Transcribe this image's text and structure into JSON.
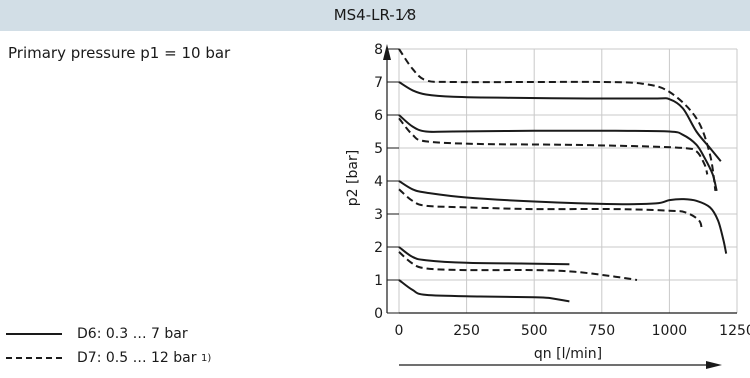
{
  "header": {
    "title": "MS4-LR-1⁄8"
  },
  "note": "Primary pressure p1 = 10 bar",
  "legend": [
    {
      "style": "solid",
      "label": "D6: 0.3 … 7 bar",
      "sup": ""
    },
    {
      "style": "dashed",
      "label": "D7: 0.5 … 12 bar",
      "sup": "1)"
    }
  ],
  "chart_data": {
    "type": "line",
    "title": "MS4-LR-1⁄8",
    "xlabel": "qn [l/min]",
    "ylabel": "p2 [bar]",
    "xlim": [
      0,
      1250
    ],
    "ylim": [
      0,
      8
    ],
    "x_ticks": [
      0,
      250,
      500,
      750,
      1000,
      1250
    ],
    "y_ticks": [
      0,
      1,
      2,
      3,
      4,
      5,
      6,
      7,
      8
    ],
    "grid": true,
    "series": [
      {
        "style": "solid",
        "points": [
          [
            0,
            7.0
          ],
          [
            50,
            6.75
          ],
          [
            100,
            6.62
          ],
          [
            200,
            6.55
          ],
          [
            400,
            6.52
          ],
          [
            700,
            6.5
          ],
          [
            950,
            6.5
          ],
          [
            1000,
            6.48
          ],
          [
            1050,
            6.2
          ],
          [
            1100,
            5.5
          ],
          [
            1150,
            5.0
          ],
          [
            1190,
            4.6
          ]
        ]
      },
      {
        "style": "solid",
        "points": [
          [
            0,
            6.0
          ],
          [
            50,
            5.65
          ],
          [
            100,
            5.5
          ],
          [
            200,
            5.5
          ],
          [
            500,
            5.52
          ],
          [
            800,
            5.52
          ],
          [
            1000,
            5.5
          ],
          [
            1050,
            5.4
          ],
          [
            1100,
            5.1
          ],
          [
            1130,
            4.7
          ],
          [
            1160,
            4.2
          ],
          [
            1175,
            3.7
          ]
        ]
      },
      {
        "style": "solid",
        "points": [
          [
            0,
            4.0
          ],
          [
            50,
            3.75
          ],
          [
            100,
            3.65
          ],
          [
            250,
            3.5
          ],
          [
            500,
            3.38
          ],
          [
            800,
            3.3
          ],
          [
            950,
            3.32
          ],
          [
            1000,
            3.42
          ],
          [
            1050,
            3.45
          ],
          [
            1100,
            3.4
          ],
          [
            1150,
            3.2
          ],
          [
            1180,
            2.8
          ],
          [
            1200,
            2.2
          ],
          [
            1210,
            1.8
          ]
        ]
      },
      {
        "style": "solid",
        "points": [
          [
            0,
            2.0
          ],
          [
            50,
            1.7
          ],
          [
            100,
            1.6
          ],
          [
            250,
            1.52
          ],
          [
            450,
            1.5
          ],
          [
            630,
            1.48
          ]
        ]
      },
      {
        "style": "solid",
        "points": [
          [
            0,
            1.0
          ],
          [
            50,
            0.7
          ],
          [
            100,
            0.55
          ],
          [
            300,
            0.5
          ],
          [
            500,
            0.48
          ],
          [
            560,
            0.45
          ],
          [
            630,
            0.35
          ]
        ]
      },
      {
        "style": "dashed",
        "points": [
          [
            0,
            8.0
          ],
          [
            50,
            7.4
          ],
          [
            100,
            7.05
          ],
          [
            200,
            7.0
          ],
          [
            500,
            7.0
          ],
          [
            750,
            7.0
          ],
          [
            900,
            6.95
          ],
          [
            1000,
            6.7
          ],
          [
            1100,
            5.9
          ],
          [
            1150,
            4.8
          ],
          [
            1170,
            3.7
          ]
        ]
      },
      {
        "style": "dashed",
        "points": [
          [
            0,
            5.9
          ],
          [
            50,
            5.4
          ],
          [
            100,
            5.2
          ],
          [
            300,
            5.12
          ],
          [
            600,
            5.1
          ],
          [
            900,
            5.05
          ],
          [
            1050,
            5.0
          ],
          [
            1100,
            4.9
          ],
          [
            1130,
            4.5
          ],
          [
            1140,
            4.2
          ]
        ]
      },
      {
        "style": "dashed",
        "points": [
          [
            0,
            3.75
          ],
          [
            50,
            3.4
          ],
          [
            100,
            3.25
          ],
          [
            250,
            3.2
          ],
          [
            500,
            3.15
          ],
          [
            800,
            3.15
          ],
          [
            1000,
            3.1
          ],
          [
            1060,
            3.05
          ],
          [
            1110,
            2.8
          ],
          [
            1120,
            2.5
          ]
        ]
      },
      {
        "style": "dashed",
        "points": [
          [
            0,
            1.85
          ],
          [
            50,
            1.5
          ],
          [
            100,
            1.35
          ],
          [
            250,
            1.3
          ],
          [
            500,
            1.3
          ],
          [
            650,
            1.25
          ],
          [
            800,
            1.1
          ],
          [
            880,
            1.0
          ]
        ]
      }
    ]
  }
}
